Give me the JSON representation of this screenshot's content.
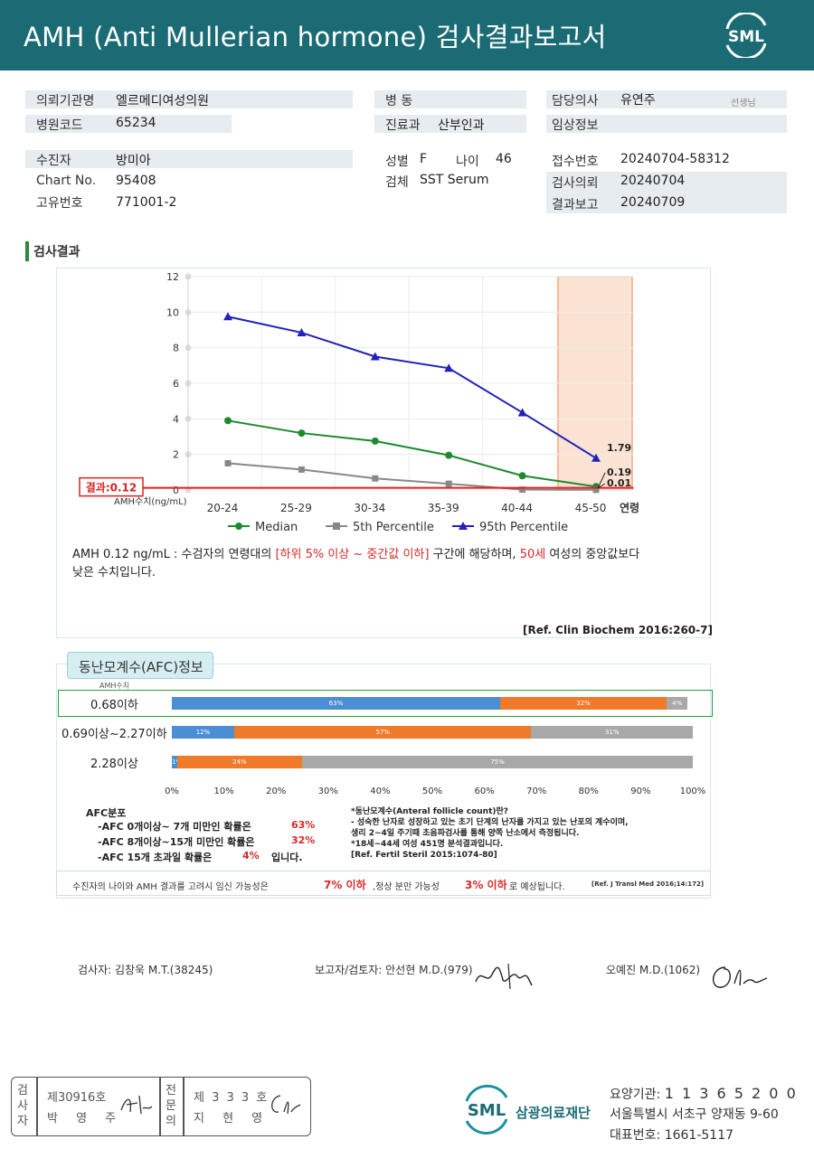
{
  "header": {
    "title": "AMH (Anti Mullerian hormone) 검사결과보고서",
    "logo_text": "SML"
  },
  "info": {
    "hospital_label": "의뢰기관명",
    "hospital_value": "엘르메디여성의원",
    "code_label": "병원코드",
    "code_value": "65234",
    "ward_label": "병 동",
    "dept_label": "진료과",
    "dept_value": "산부인과",
    "doctor_label": "담당의사",
    "doctor_value": "유연주",
    "doctor_suffix": "선생님",
    "clinical_label": "임상정보",
    "patient_label": "수진자",
    "patient_value": "방미아",
    "chart_label": "Chart No.",
    "chart_value": "95408",
    "uid_label": "고유번호",
    "uid_value": "771001-2",
    "sex_label": "성별",
    "sex_value": "F",
    "age_label": "나이",
    "age_value": "46",
    "specimen_label": "검체",
    "specimen_value": "SST Serum",
    "receipt_label": "접수번호",
    "receipt_value": "20240704-58312",
    "request_label": "검사의뢰",
    "request_value": "20240704",
    "report_label": "결과보고",
    "report_value": "20240709"
  },
  "section_title": "검사결과",
  "chart_data": {
    "type": "line",
    "categories": [
      "20-24",
      "25-29",
      "30-34",
      "35-39",
      "40-44",
      "45-50"
    ],
    "x_axis_suffix": "연령",
    "y_axis_label": "AMH수치(ng/mL)",
    "y_ticks": [
      "0",
      "2",
      "4",
      "6",
      "8",
      "10",
      "12"
    ],
    "ylim": [
      0,
      12
    ],
    "series": [
      {
        "name": "Median",
        "color": "#1e8a2e",
        "values": [
          3.9,
          3.2,
          2.75,
          1.95,
          0.8,
          0.19
        ]
      },
      {
        "name": "5th Percentile",
        "color": "#888888",
        "values": [
          1.5,
          1.15,
          0.65,
          0.35,
          0.02,
          0.01
        ]
      },
      {
        "name": "95th Percentile",
        "color": "#2222bb",
        "values": [
          9.75,
          8.85,
          7.5,
          6.85,
          4.35,
          1.79
        ]
      }
    ],
    "highlight_category": "45-50",
    "result_line": {
      "label": "결과:0.12",
      "value": 0.12,
      "color": "#dd2222"
    },
    "annotations": [
      "1.79",
      "0.19",
      "0.01"
    ],
    "grid": true,
    "legend": "bottom"
  },
  "interpretation": {
    "part1": "AMH  0.12 ng/mL : 수검자의 연령대의 ",
    "part2": "[하위 5% 이상 ~ 중간값 이하]",
    "part3": " 구간에 해당하며, ",
    "part4": "50세",
    "part5": " 여성의 중앙값보다",
    "line2": "낮은 수치입니다.",
    "ref": "[Ref. Clin Biochem 2016:260-7]"
  },
  "afc": {
    "tab_label": "동난모계수(AFC)정보",
    "amh_header": "AMH수치",
    "colors": {
      "low": "#4a8fd4",
      "mid": "#ee7a2a",
      "high": "#a8a8a8"
    },
    "rows": [
      {
        "label": "0.68이하",
        "segments": [
          63,
          32,
          4
        ],
        "texts": [
          "63%",
          "32%",
          "4%"
        ]
      },
      {
        "label": "0.69이상~2.27이하",
        "segments": [
          12,
          57,
          31
        ],
        "texts": [
          "12%",
          "57%",
          "31%"
        ]
      },
      {
        "label": "2.28이상",
        "segments": [
          1,
          24,
          75
        ],
        "texts": [
          "1%",
          "24%",
          "75%"
        ]
      }
    ],
    "x_ticks": [
      "0%",
      "10%",
      "20%",
      "30%",
      "40%",
      "50%",
      "60%",
      "70%",
      "80%",
      "90%",
      "100%"
    ],
    "dist_title": "AFC분포",
    "dist_lines": [
      {
        "text": "-AFC  0개이상~ 7개 미만인 확률은",
        "pct": "63%"
      },
      {
        "text": "-AFC  8개이상~15개 미만인 확률은",
        "pct": "32%"
      },
      {
        "text": "-AFC  15개 초과일 확률은",
        "pct": "4%",
        "tail": "입니다."
      }
    ],
    "note_title": "*동난모계수(Anteral  follicle  count)란?",
    "note_line1": "- 성숙한  난자로  성장하고  있는  초기  단계의  난자를  가지고  있는  난포의  계수이며,",
    "note_line2": "  생리  2~4일  주기때  초음파검사를  통해  양쪽  난소에서  측정됩니다.",
    "note_line3": "*18세~44세  여성  451명  분석결과입니다.",
    "note_ref": "[Ref. Fertil Steril 2015:1074-80]",
    "summary_a": "수진자의  나이와 AMH 결과를 고려시 임신 가능성은",
    "summary_b": "7% 이하",
    "summary_c": ",정상 분만 가능성",
    "summary_d": "3% 이하",
    "summary_e": "로 예상됩니다.",
    "summary_ref": "[Ref. J Transl Med 2016;14:172]"
  },
  "signatures": {
    "tester": "검사자: 김창욱 M.T.(38245)",
    "reporter": "보고자/검토자: 안선현 M.D.(979)",
    "doctor": "오예진 M.D.(1062)"
  },
  "footer": {
    "stamp_side1": "검사자",
    "stamp_line1": "제30916호",
    "stamp_name1": "박 영 주",
    "stamp_side2": "전문의",
    "stamp_line2": "제 3 3 3 호",
    "stamp_name2": "지 현 영",
    "org_logo": "SML",
    "org_name": "삼광의료재단",
    "care_label": "요양기관:",
    "care_value": "1 1 3 6 5 2 0 0",
    "address": "서울특별시 서초구 양재동 9-60",
    "phone_label": "대표번호:",
    "phone_value": "1661-5117"
  }
}
